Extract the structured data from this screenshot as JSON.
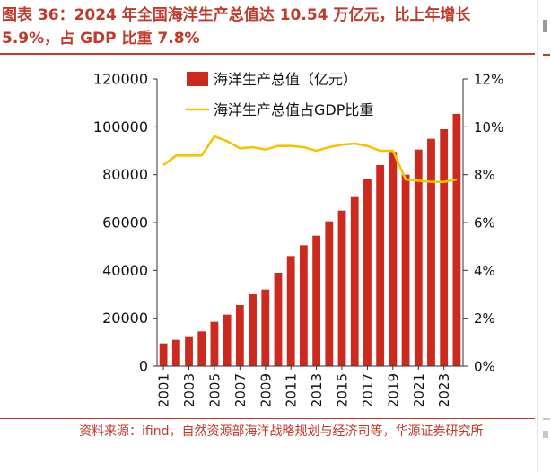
{
  "header": {
    "figure_title": "图表 36：2024 年全国海洋生产总值达 10.54 万亿元，比上年增长 5.9%，占 GDP 比重 7.8%"
  },
  "footer": {
    "source": "资料来源：ifind，自然资源部海洋战略规划与经济司等，华源证券研究所"
  },
  "colors": {
    "bar": "#cc2a1f",
    "line": "#f5c400",
    "title": "#c0392b",
    "axis": "#333333"
  },
  "chart_data": {
    "type": "bar",
    "title": "",
    "xlabel": "",
    "ylabel": "",
    "categories": [
      "2001",
      "2002",
      "2003",
      "2004",
      "2005",
      "2006",
      "2007",
      "2008",
      "2009",
      "2010",
      "2011",
      "2012",
      "2013",
      "2014",
      "2015",
      "2016",
      "2017",
      "2018",
      "2019",
      "2020",
      "2021",
      "2022",
      "2023",
      "2024"
    ],
    "x_tick_labels": [
      "2001",
      "2003",
      "2005",
      "2007",
      "2009",
      "2011",
      "2013",
      "2015",
      "2017",
      "2019",
      "2021",
      "2023"
    ],
    "series": [
      {
        "name": "海洋生产总值（亿元）",
        "type": "bar",
        "axis": "left",
        "values": [
          9500,
          11000,
          12500,
          14500,
          18500,
          21500,
          25500,
          30000,
          32000,
          39000,
          46000,
          50500,
          54500,
          60500,
          65000,
          71000,
          78000,
          84000,
          89500,
          80000,
          90500,
          95000,
          99000,
          105400
        ]
      },
      {
        "name": "海洋生产总值占GDP比重",
        "type": "line",
        "axis": "right",
        "values": [
          8.4,
          8.8,
          8.8,
          8.8,
          9.6,
          9.4,
          9.1,
          9.15,
          9.05,
          9.2,
          9.2,
          9.15,
          9.0,
          9.15,
          9.25,
          9.3,
          9.2,
          9.0,
          9.0,
          7.8,
          7.75,
          7.7,
          7.7,
          7.8
        ]
      }
    ],
    "y_left": {
      "range": [
        0,
        120000
      ],
      "ticks": [
        "0",
        "20000",
        "40000",
        "60000",
        "80000",
        "100000",
        "120000"
      ]
    },
    "y_right": {
      "range": [
        0,
        12
      ],
      "ticks": [
        "0%",
        "2%",
        "4%",
        "6%",
        "8%",
        "10%",
        "12%"
      ]
    },
    "legend_position": "top-left",
    "grid": false
  }
}
